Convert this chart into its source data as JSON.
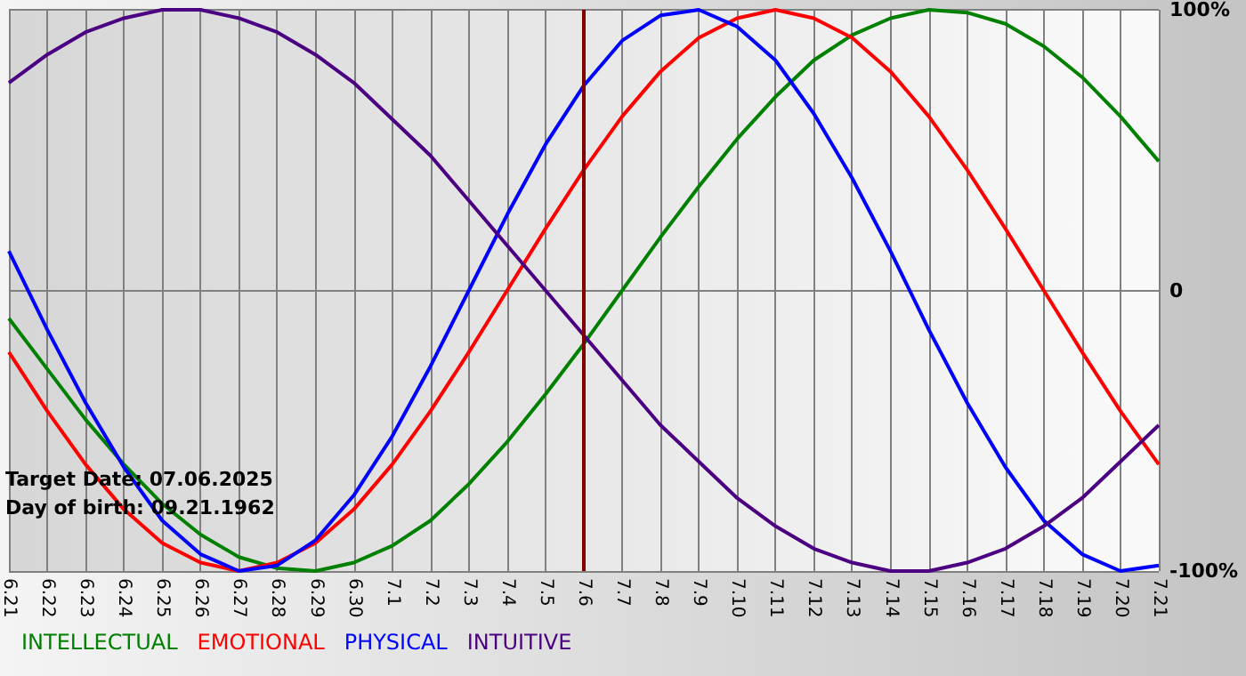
{
  "chart_data": {
    "type": "line",
    "categories": [
      "6.21",
      "6.22",
      "6.23",
      "6.24",
      "6.25",
      "6.26",
      "6.27",
      "6.28",
      "6.29",
      "6.30",
      "7.1",
      "7.2",
      "7.3",
      "7.4",
      "7.5",
      "7.6",
      "7.7",
      "7.8",
      "7.9",
      "7.10",
      "7.11",
      "7.12",
      "7.13",
      "7.14",
      "7.15",
      "7.16",
      "7.17",
      "7.18",
      "7.19",
      "7.20",
      "7.21"
    ],
    "series": [
      {
        "name": "INTELLECTUAL",
        "color": "#008000",
        "values": [
          -10,
          -28,
          -46,
          -62,
          -76,
          -87,
          -95,
          -99,
          -100,
          -97,
          -91,
          -82,
          -69,
          -54,
          -37,
          -19,
          0,
          19,
          37,
          54,
          69,
          82,
          91,
          97,
          100,
          99,
          95,
          87,
          76,
          62,
          46
        ]
      },
      {
        "name": "EMOTIONAL",
        "color": "#ff0000",
        "values": [
          -22,
          -43,
          -62,
          -78,
          -90,
          -97,
          -100,
          -97,
          -90,
          -78,
          -62,
          -43,
          -22,
          0,
          22,
          43,
          62,
          78,
          90,
          97,
          100,
          97,
          90,
          78,
          62,
          43,
          22,
          0,
          -22,
          -43,
          -62
        ]
      },
      {
        "name": "PHYSICAL",
        "color": "#0000ff",
        "values": [
          14,
          -14,
          -40,
          -63,
          -82,
          -94,
          -100,
          -98,
          -89,
          -73,
          -52,
          -27,
          0,
          27,
          52,
          73,
          89,
          98,
          100,
          94,
          82,
          63,
          40,
          14,
          -14,
          -40,
          -63,
          -82,
          -94,
          -100,
          -98
        ]
      },
      {
        "name": "INTUITIVE",
        "color": "#4b0082",
        "values": [
          74,
          84,
          92,
          97,
          100,
          100,
          97,
          92,
          84,
          74,
          61,
          48,
          32,
          16,
          0,
          -16,
          -32,
          -48,
          -61,
          -74,
          -84,
          -92,
          -97,
          -100,
          -100,
          -97,
          -92,
          -84,
          -74,
          -61,
          -48
        ]
      }
    ],
    "ylim": [
      -100,
      100
    ],
    "yticks": [
      {
        "value": -100,
        "label": "-100%"
      },
      0,
      {
        "value": 100,
        "label": "100%"
      }
    ],
    "ref_lines": [
      {
        "axis": "x",
        "value": "7.6",
        "color": "#800000"
      }
    ],
    "annotations": [
      "Target Date: 07.06.2025",
      "Day of birth: 09.21.1962"
    ],
    "grid": true,
    "legend": "bottom left",
    "marker": "none",
    "line_style": "solid"
  }
}
